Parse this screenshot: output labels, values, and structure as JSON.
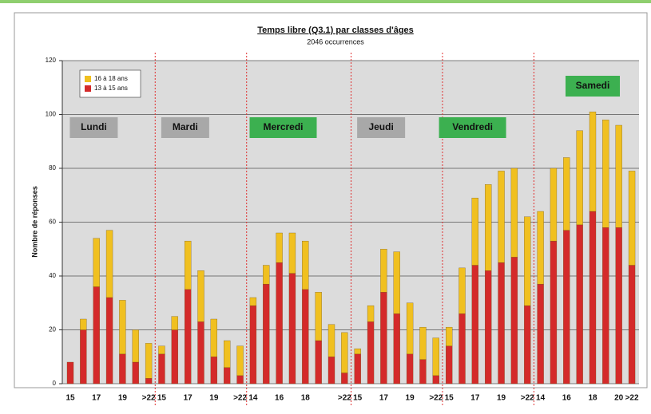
{
  "chart_data": {
    "type": "bar",
    "stacked": true,
    "title": "Temps libre (Q3.1) par classes d'âges",
    "subtitle": "2046 occurrences",
    "y_label": "Nombre de réponses",
    "ylim": [
      0,
      120
    ],
    "yticks": [
      0,
      20,
      40,
      60,
      80,
      100,
      120
    ],
    "grid": true,
    "legend": "top-left",
    "series": [
      {
        "name": "16 à 18 ans",
        "color": "#f0c020"
      },
      {
        "name": "13 à 15 ans",
        "color": "#d42a2a"
      }
    ],
    "days": [
      {
        "label": "Lundi",
        "label_color": "#a8a8a8",
        "categories": [
          "15",
          null,
          "17",
          null,
          "19",
          null,
          ">22"
        ],
        "values": [
          [
            0,
            4,
            18,
            25,
            20,
            12,
            13
          ],
          [
            8,
            20,
            36,
            32,
            11,
            8,
            2
          ]
        ]
      },
      {
        "label": "Mardi",
        "label_color": "#a8a8a8",
        "categories": [
          "15",
          null,
          "17",
          null,
          "19",
          null,
          ">22"
        ],
        "values": [
          [
            3,
            5,
            18,
            19,
            14,
            10,
            11
          ],
          [
            11,
            20,
            35,
            23,
            10,
            6,
            3
          ]
        ]
      },
      {
        "label": "Mercredi",
        "label_color": "#3cb050",
        "categories": [
          "14",
          null,
          "16",
          null,
          "18",
          null,
          null,
          ">22"
        ],
        "values": [
          [
            3,
            7,
            11,
            15,
            18,
            18,
            12,
            15
          ],
          [
            29,
            37,
            45,
            41,
            35,
            16,
            10,
            4
          ]
        ]
      },
      {
        "label": "Jeudi",
        "label_color": "#a8a8a8",
        "categories": [
          "15",
          null,
          "17",
          null,
          "19",
          null,
          ">22"
        ],
        "values": [
          [
            2,
            6,
            16,
            23,
            19,
            12,
            14
          ],
          [
            11,
            23,
            34,
            26,
            11,
            9,
            3
          ]
        ]
      },
      {
        "label": "Vendredi",
        "label_color": "#3cb050",
        "categories": [
          "15",
          null,
          "17",
          null,
          "19",
          null,
          ">22"
        ],
        "values": [
          [
            7,
            17,
            25,
            32,
            34,
            33,
            33
          ],
          [
            14,
            26,
            44,
            42,
            45,
            47,
            29
          ]
        ]
      },
      {
        "label": "Samedi",
        "label_color": "#3cb050",
        "categories": [
          "14",
          null,
          "16",
          null,
          "18",
          null,
          "20",
          ">22"
        ],
        "values": [
          [
            27,
            27,
            27,
            35,
            37,
            40,
            38,
            35
          ],
          [
            37,
            53,
            57,
            59,
            64,
            58,
            58,
            44
          ]
        ]
      }
    ]
  }
}
